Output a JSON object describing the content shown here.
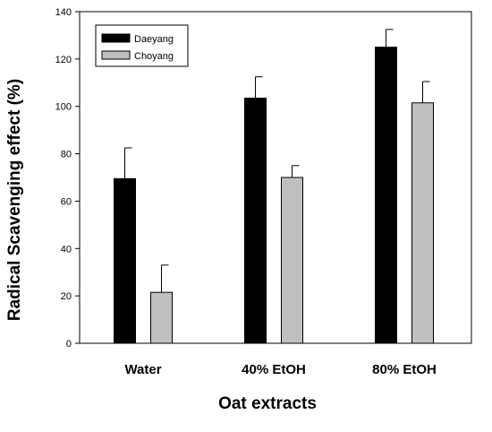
{
  "chart_data": {
    "type": "bar",
    "title": "",
    "xlabel": "Oat extracts",
    "ylabel": "Radical Scavenging effect (%)",
    "ylim": [
      0,
      140
    ],
    "yticks": [
      0,
      20,
      40,
      60,
      80,
      100,
      120,
      140
    ],
    "categories": [
      "Water",
      "40% EtOH",
      "80% EtOH"
    ],
    "series": [
      {
        "name": "Daeyang",
        "color": "#000000",
        "values": [
          69.5,
          103.5,
          125.0
        ],
        "errors": [
          13.0,
          9.0,
          7.5
        ]
      },
      {
        "name": "Choyang",
        "color": "#c0c0c0",
        "values": [
          21.5,
          70.0,
          101.5
        ],
        "errors": [
          11.5,
          5.0,
          9.0
        ]
      }
    ],
    "legend_position": "top-left",
    "grid": false
  }
}
